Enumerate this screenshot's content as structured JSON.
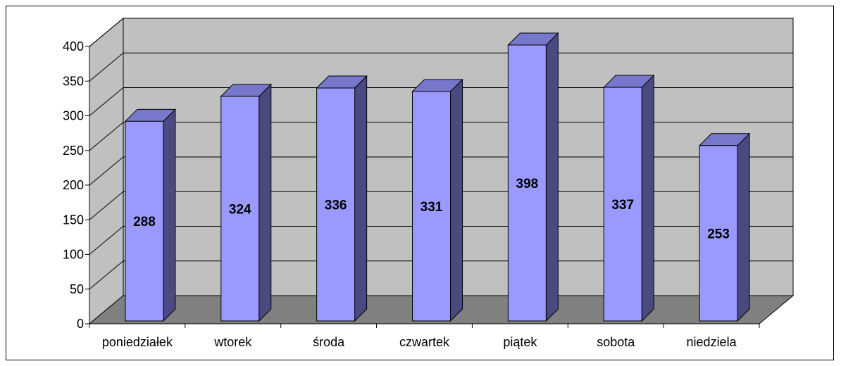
{
  "chart_data": {
    "type": "bar",
    "style": "3d-column",
    "categories": [
      "poniedziałek",
      "wtorek",
      "środa",
      "czwartek",
      "piątek",
      "sobota",
      "niedziela"
    ],
    "values": [
      288,
      324,
      336,
      331,
      398,
      337,
      253
    ],
    "data_labels": [
      "288",
      "324",
      "336",
      "331",
      "398",
      "337",
      "253"
    ],
    "title": "",
    "xlabel": "",
    "ylabel": "",
    "ylim": [
      0,
      400
    ],
    "yticks": [
      "0",
      "50",
      "100",
      "150",
      "200",
      "250",
      "300",
      "350",
      "400"
    ],
    "grid": true,
    "legend": "none",
    "colors": {
      "bar_front": "#9999ff",
      "bar_top": "#7777cc",
      "bar_side": "#4a4a80",
      "back_wall": "#c0c0c0",
      "side_wall": "#c0c0c0",
      "floor": "#808080",
      "gridline": "#000000"
    }
  }
}
